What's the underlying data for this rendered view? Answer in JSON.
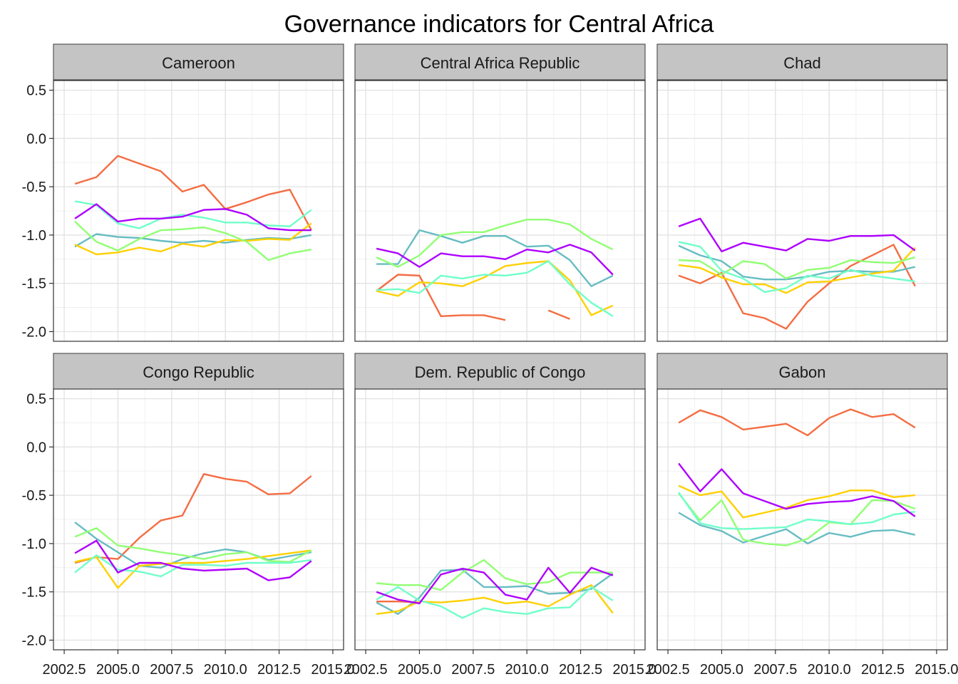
{
  "chart_data": {
    "type": "line",
    "title": "Governance indicators for Central Africa",
    "xlabel": "",
    "ylabel": "",
    "xlim": [
      2002,
      2015.5
    ],
    "ylim": [
      -2.1,
      0.6
    ],
    "x_ticks": [
      "2002.5",
      "2005.0",
      "2007.5",
      "2010.0",
      "2012.5",
      "2015.0"
    ],
    "y_ticks": [
      "0.5",
      "0.0",
      "-0.5",
      "-1.0",
      "-1.5",
      "-2.0"
    ],
    "grid": true,
    "legend": "none",
    "x": [
      2003,
      2004,
      2005,
      2006,
      2007,
      2008,
      2009,
      2010,
      2011,
      2012,
      2013,
      2014
    ],
    "series_colors": [
      "#F46D43",
      "#66BDC2",
      "#FFD000",
      "#91FF74",
      "#70FFC9",
      "#AE00FF"
    ],
    "panels": [
      {
        "label": "Cameroon",
        "series": [
          {
            "color": "#F46D43",
            "values": [
              -0.47,
              -0.4,
              -0.18,
              -0.26,
              -0.34,
              -0.55,
              -0.48,
              -0.73,
              -0.66,
              -0.58,
              -0.53,
              -0.95
            ]
          },
          {
            "color": "#66BDC2",
            "values": [
              -1.12,
              -0.99,
              -1.02,
              -1.03,
              -1.06,
              -1.08,
              -1.06,
              -1.08,
              -1.05,
              -1.03,
              -1.04,
              -1.0
            ]
          },
          {
            "color": "#FFD000",
            "values": [
              -1.1,
              -1.2,
              -1.18,
              -1.13,
              -1.17,
              -1.09,
              -1.12,
              -1.05,
              -1.06,
              -1.04,
              -1.05,
              -0.88
            ]
          },
          {
            "color": "#91FF74",
            "values": [
              -0.86,
              -1.07,
              -1.16,
              -1.04,
              -0.95,
              -0.94,
              -0.92,
              -0.98,
              -1.07,
              -1.26,
              -1.19,
              -1.15
            ]
          },
          {
            "color": "#70FFC9",
            "values": [
              -0.65,
              -0.69,
              -0.88,
              -0.93,
              -0.83,
              -0.79,
              -0.82,
              -0.87,
              -0.87,
              -0.9,
              -0.91,
              -0.74
            ]
          },
          {
            "color": "#AE00FF",
            "values": [
              -0.83,
              -0.68,
              -0.86,
              -0.83,
              -0.83,
              -0.81,
              -0.74,
              -0.73,
              -0.79,
              -0.93,
              -0.95,
              -0.95
            ]
          }
        ]
      },
      {
        "label": "Central Africa Republic",
        "series": [
          {
            "color": "#F46D43",
            "values": [
              -1.58,
              -1.41,
              -1.42,
              -1.84,
              -1.83,
              -1.83,
              -1.88,
              null,
              -1.78,
              -1.87,
              null,
              null
            ]
          },
          {
            "color": "#66BDC2",
            "values": [
              -1.3,
              -1.3,
              -0.95,
              -1.01,
              -1.08,
              -1.01,
              -1.01,
              -1.12,
              -1.11,
              -1.26,
              -1.53,
              -1.42
            ]
          },
          {
            "color": "#FFD000",
            "values": [
              -1.58,
              -1.63,
              -1.49,
              -1.5,
              -1.53,
              -1.44,
              -1.32,
              -1.29,
              -1.27,
              -1.47,
              -1.83,
              -1.73
            ]
          },
          {
            "color": "#91FF74",
            "values": [
              -1.23,
              -1.33,
              -1.21,
              -1.0,
              -0.97,
              -0.97,
              -0.9,
              -0.84,
              -0.84,
              -0.89,
              -1.04,
              -1.15
            ]
          },
          {
            "color": "#70FFC9",
            "values": [
              -1.57,
              -1.56,
              -1.6,
              -1.42,
              -1.45,
              -1.41,
              -1.42,
              -1.39,
              -1.27,
              -1.51,
              -1.7,
              -1.84
            ]
          },
          {
            "color": "#AE00FF",
            "values": [
              -1.14,
              -1.19,
              -1.33,
              -1.19,
              -1.22,
              -1.22,
              -1.25,
              -1.15,
              -1.18,
              -1.1,
              -1.18,
              -1.41
            ]
          }
        ]
      },
      {
        "label": "Chad",
        "series": [
          {
            "color": "#F46D43",
            "values": [
              -1.42,
              -1.5,
              -1.39,
              -1.81,
              -1.86,
              -1.97,
              -1.69,
              -1.5,
              -1.32,
              -1.21,
              -1.1,
              -1.53
            ]
          },
          {
            "color": "#66BDC2",
            "values": [
              -1.11,
              -1.21,
              -1.27,
              -1.43,
              -1.46,
              -1.46,
              -1.43,
              -1.38,
              -1.37,
              -1.38,
              -1.38,
              -1.33
            ]
          },
          {
            "color": "#FFD000",
            "values": [
              -1.31,
              -1.34,
              -1.44,
              -1.51,
              -1.51,
              -1.6,
              -1.49,
              -1.48,
              -1.44,
              -1.4,
              -1.37,
              -1.13
            ]
          },
          {
            "color": "#91FF74",
            "values": [
              -1.26,
              -1.27,
              -1.41,
              -1.27,
              -1.3,
              -1.45,
              -1.36,
              -1.34,
              -1.26,
              -1.28,
              -1.29,
              -1.23
            ]
          },
          {
            "color": "#70FFC9",
            "values": [
              -1.07,
              -1.12,
              -1.37,
              -1.45,
              -1.59,
              -1.55,
              -1.42,
              -1.45,
              -1.36,
              -1.42,
              -1.45,
              -1.48
            ]
          },
          {
            "color": "#AE00FF",
            "values": [
              -0.91,
              -0.83,
              -1.17,
              -1.08,
              -1.12,
              -1.16,
              -1.04,
              -1.06,
              -1.01,
              -1.01,
              -1.0,
              -1.16
            ]
          }
        ]
      },
      {
        "label": "Congo Republic",
        "series": [
          {
            "color": "#F46D43",
            "values": [
              -1.2,
              -1.14,
              -1.16,
              -0.94,
              -0.76,
              -0.71,
              -0.28,
              -0.33,
              -0.36,
              -0.49,
              -0.48,
              -0.3
            ]
          },
          {
            "color": "#66BDC2",
            "values": [
              -0.78,
              -0.95,
              -1.09,
              -1.23,
              -1.25,
              -1.16,
              -1.1,
              -1.06,
              -1.09,
              -1.17,
              -1.13,
              -1.09
            ]
          },
          {
            "color": "#FFD000",
            "values": [
              -1.19,
              -1.14,
              -1.46,
              -1.23,
              -1.21,
              -1.2,
              -1.2,
              -1.18,
              -1.16,
              -1.13,
              -1.1,
              -1.07
            ]
          },
          {
            "color": "#91FF74",
            "values": [
              -0.93,
              -0.84,
              -1.02,
              -1.05,
              -1.09,
              -1.12,
              -1.16,
              -1.11,
              -1.09,
              -1.18,
              -1.19,
              -1.07
            ]
          },
          {
            "color": "#70FFC9",
            "values": [
              -1.3,
              -1.12,
              -1.27,
              -1.29,
              -1.34,
              -1.22,
              -1.22,
              -1.23,
              -1.2,
              -1.2,
              -1.2,
              -1.17
            ]
          },
          {
            "color": "#AE00FF",
            "values": [
              -1.1,
              -0.97,
              -1.3,
              -1.2,
              -1.2,
              -1.26,
              -1.28,
              -1.27,
              -1.26,
              -1.38,
              -1.35,
              -1.18
            ]
          }
        ]
      },
      {
        "label": "Dem. Republic of Congo",
        "series": [
          {
            "color": "#F46D43",
            "values": [
              -1.6,
              -1.6,
              -1.61,
              null,
              null,
              null,
              null,
              null,
              null,
              null,
              null,
              null
            ]
          },
          {
            "color": "#66BDC2",
            "values": [
              -1.61,
              -1.73,
              -1.56,
              -1.28,
              -1.27,
              -1.45,
              -1.45,
              -1.44,
              -1.52,
              -1.51,
              -1.47,
              -1.31
            ]
          },
          {
            "color": "#FFD000",
            "values": [
              -1.73,
              -1.7,
              -1.6,
              -1.61,
              -1.59,
              -1.56,
              -1.62,
              -1.6,
              -1.65,
              -1.53,
              -1.43,
              -1.72
            ]
          },
          {
            "color": "#91FF74",
            "values": [
              -1.41,
              -1.43,
              -1.43,
              -1.48,
              -1.3,
              -1.17,
              -1.36,
              -1.42,
              -1.4,
              -1.3,
              -1.3,
              -1.3
            ]
          },
          {
            "color": "#70FFC9",
            "values": [
              -1.58,
              -1.45,
              -1.59,
              -1.65,
              -1.77,
              -1.67,
              -1.71,
              -1.73,
              -1.67,
              -1.66,
              -1.45,
              -1.59
            ]
          },
          {
            "color": "#AE00FF",
            "values": [
              -1.5,
              -1.58,
              -1.62,
              -1.32,
              -1.26,
              -1.3,
              -1.53,
              -1.58,
              -1.25,
              -1.51,
              -1.25,
              -1.33
            ]
          }
        ]
      },
      {
        "label": "Gabon",
        "series": [
          {
            "color": "#F46D43",
            "values": [
              0.25,
              0.38,
              0.31,
              0.18,
              0.21,
              0.24,
              0.12,
              0.3,
              0.39,
              0.31,
              0.34,
              0.2
            ]
          },
          {
            "color": "#66BDC2",
            "values": [
              -0.68,
              -0.81,
              -0.87,
              -0.99,
              -0.92,
              -0.85,
              -1.0,
              -0.89,
              -0.93,
              -0.87,
              -0.86,
              -0.91
            ]
          },
          {
            "color": "#FFD000",
            "values": [
              -0.4,
              -0.5,
              -0.46,
              -0.73,
              -0.68,
              -0.63,
              -0.55,
              -0.51,
              -0.45,
              -0.45,
              -0.52,
              -0.5
            ]
          },
          {
            "color": "#91FF74",
            "values": [
              -0.48,
              -0.76,
              -0.55,
              -0.96,
              -1.0,
              -1.02,
              -0.95,
              -0.78,
              -0.8,
              -0.55,
              -0.56,
              -0.64
            ]
          },
          {
            "color": "#70FFC9",
            "values": [
              -0.47,
              -0.79,
              -0.84,
              -0.85,
              -0.84,
              -0.83,
              -0.75,
              -0.77,
              -0.8,
              -0.78,
              -0.7,
              -0.67
            ]
          },
          {
            "color": "#AE00FF",
            "values": [
              -0.17,
              -0.46,
              -0.23,
              -0.48,
              -0.56,
              -0.64,
              -0.59,
              -0.57,
              -0.56,
              -0.51,
              -0.56,
              -0.72
            ]
          }
        ]
      }
    ]
  }
}
